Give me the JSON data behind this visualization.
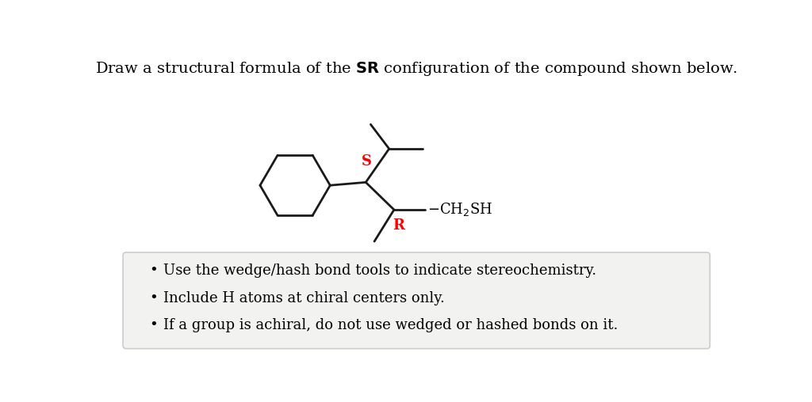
{
  "bg_color": "#ffffff",
  "box_bg_color": "#f2f2f0",
  "box_edge_color": "#cccccc",
  "line_color": "#1a1a1a",
  "red_color": "#ff0000",
  "bullet_points": [
    "Use the wedge/hash bond tools to indicate stereochemistry.",
    "Include H atoms at chiral centers only.",
    "If a group is achiral, do not use wedged or hashed bonds on it."
  ],
  "S_label": "S",
  "R_label": "R",
  "CH2SH_label": "CH₂SH",
  "title_part1": "Draw a structural formula of the ",
  "title_bold": "SR",
  "title_part2": " configuration of the compound shown below."
}
